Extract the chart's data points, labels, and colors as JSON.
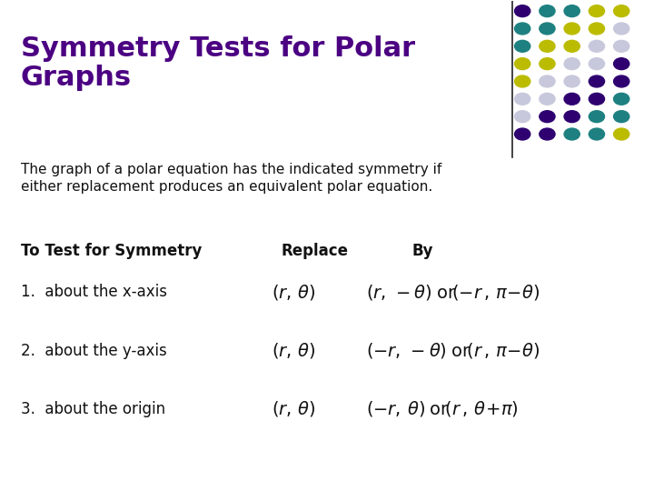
{
  "title": "Symmetry Tests for Polar\nGraphs",
  "title_color": "#4B0082",
  "subtitle": "The graph of a polar equation has the indicated symmetry if\neither replacement produces an equivalent polar equation.",
  "background_color": "#ffffff",
  "header_row": [
    "To Test for Symmetry",
    "Replace",
    "By"
  ],
  "dot_grid": {
    "purple": "#2E0070",
    "teal": "#1E8080",
    "yellow": "#BBBB00",
    "gray": "#C8C8DC"
  }
}
